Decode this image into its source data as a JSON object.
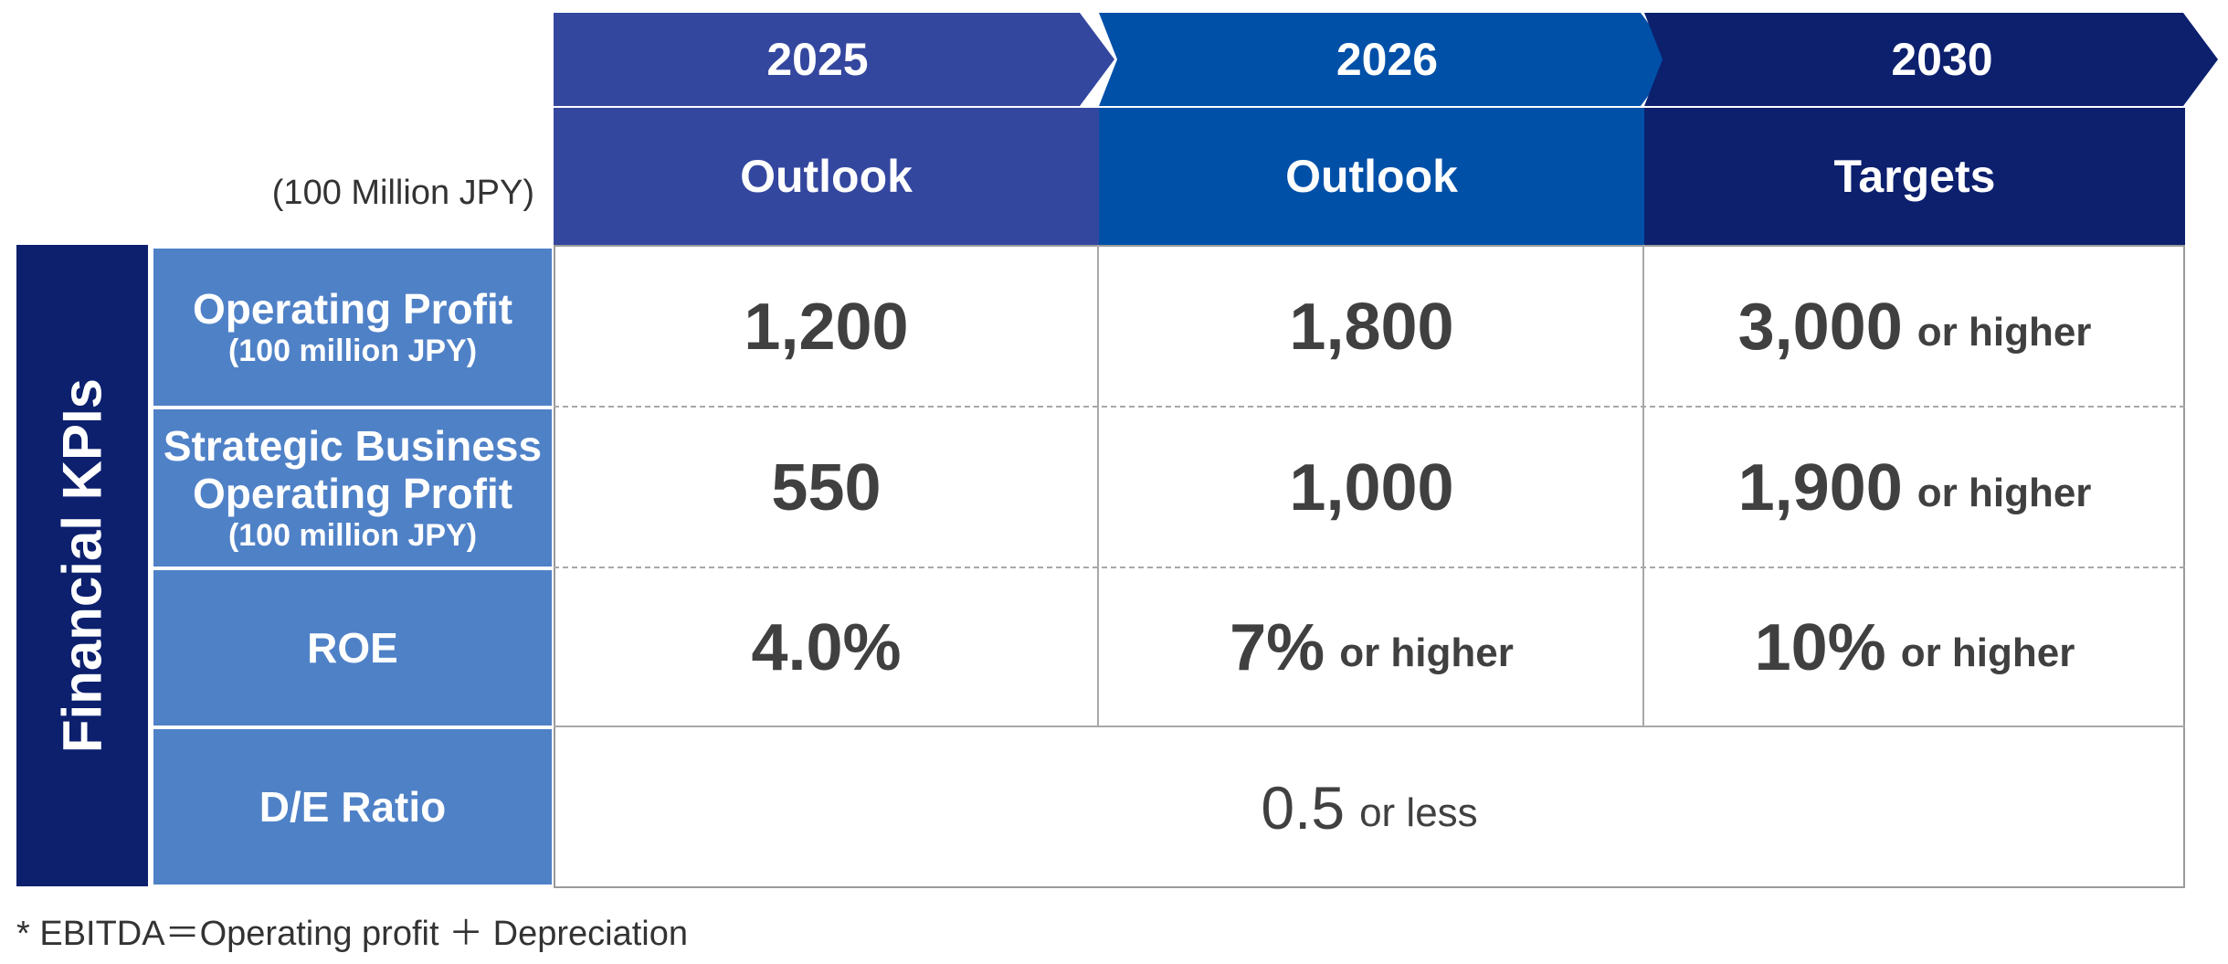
{
  "unit_note": "(100 Million JPY)",
  "years": [
    "2025",
    "2026",
    "2030"
  ],
  "column_headers": [
    "Outlook",
    "Outlook",
    "Targets"
  ],
  "side_label": "Financial KPIs",
  "rows": [
    {
      "label_lines": [
        "Operating Profit"
      ],
      "sub_label": "(100 million JPY)",
      "cells": [
        {
          "value": "1,200",
          "suffix": ""
        },
        {
          "value": "1,800",
          "suffix": ""
        },
        {
          "value": "3,000",
          "suffix": "or higher"
        }
      ]
    },
    {
      "label_lines": [
        "Strategic Business",
        "Operating Profit"
      ],
      "sub_label": "(100 million JPY)",
      "cells": [
        {
          "value": "550",
          "suffix": ""
        },
        {
          "value": "1,000",
          "suffix": ""
        },
        {
          "value": "1,900",
          "suffix": "or higher"
        }
      ]
    },
    {
      "label_lines": [
        "ROE"
      ],
      "sub_label": "",
      "cells": [
        {
          "value": "4.0%",
          "suffix": ""
        },
        {
          "value": "7%",
          "suffix": "or higher"
        },
        {
          "value": "10%",
          "suffix": "or higher"
        }
      ]
    },
    {
      "label_lines": [
        "D/E Ratio"
      ],
      "sub_label": "",
      "merged": {
        "value": "0.5",
        "suffix": "or less"
      }
    }
  ],
  "footnote": "* EBITDA＝Operating profit ＋ Depreciation",
  "colors": {
    "col_2025": "#34479f",
    "col_2026": "#0050a8",
    "col_2030": "#0c206e",
    "row_header": "#4f81c7",
    "side_label": "#0c206e"
  }
}
